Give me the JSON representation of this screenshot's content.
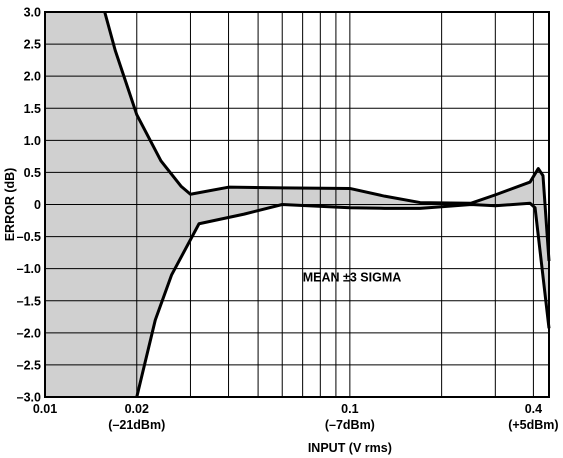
{
  "chart_data": {
    "type": "line",
    "title": "",
    "xlabel": "INPUT (V rms)",
    "ylabel": "ERROR (dB)",
    "xscale": "log",
    "xlim": [
      0.01,
      0.45
    ],
    "ylim": [
      -3.0,
      3.0
    ],
    "grid": true,
    "x_ticks": [
      {
        "value": 0.01,
        "label": "0.01",
        "sublabel": ""
      },
      {
        "value": 0.02,
        "label": "0.02",
        "sublabel": "(–21dBm)"
      },
      {
        "value": 0.1,
        "label": "0.1",
        "sublabel": "(–7dBm)"
      },
      {
        "value": 0.4,
        "label": "0.4",
        "sublabel": "(+5dBm)"
      }
    ],
    "y_ticks": [
      {
        "value": 3.0,
        "label": "3.0"
      },
      {
        "value": 2.5,
        "label": "2.5"
      },
      {
        "value": 2.0,
        "label": "2.0"
      },
      {
        "value": 1.5,
        "label": "1.5"
      },
      {
        "value": 1.0,
        "label": "1.0"
      },
      {
        "value": 0.5,
        "label": "0.5"
      },
      {
        "value": 0,
        "label": "0"
      },
      {
        "value": -0.5,
        "label": "–0.5"
      },
      {
        "value": -1.0,
        "label": "–1.0"
      },
      {
        "value": -1.5,
        "label": "–1.5"
      },
      {
        "value": -2.0,
        "label": "–2.0"
      },
      {
        "value": -2.5,
        "label": "–2.5"
      },
      {
        "value": -3.0,
        "label": "–3.0"
      }
    ],
    "annotation": "MEAN ±3 SIGMA",
    "series": [
      {
        "x": [
          0.0157,
          0.017,
          0.02,
          0.024,
          0.028,
          0.03,
          0.04,
          0.06,
          0.1,
          0.13,
          0.17,
          0.25,
          0.3,
          0.39,
          0.415,
          0.43,
          0.45
        ],
        "values": [
          3.0,
          2.4,
          1.4,
          0.68,
          0.28,
          0.16,
          0.27,
          0.26,
          0.25,
          0.13,
          0.03,
          0.02,
          0.15,
          0.35,
          0.56,
          0.45,
          -0.88
        ]
      },
      {
        "x": [
          0.02,
          0.023,
          0.026,
          0.032,
          0.045,
          0.06,
          0.1,
          0.13,
          0.17,
          0.25,
          0.3,
          0.39,
          0.405,
          0.42,
          0.45
        ],
        "values": [
          -3.0,
          -1.8,
          -1.1,
          -0.3,
          -0.15,
          0.0,
          -0.05,
          -0.06,
          -0.06,
          0.0,
          -0.02,
          0.02,
          -0.05,
          -0.7,
          -1.93
        ]
      }
    ]
  }
}
